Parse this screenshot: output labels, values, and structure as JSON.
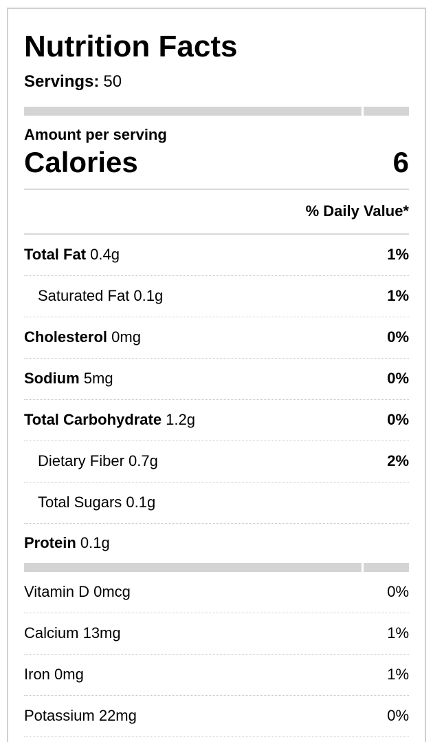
{
  "label": {
    "title": "Nutrition Facts",
    "servings_label": "Servings:",
    "servings_value": "50",
    "amount_per_serving": "Amount per serving",
    "calories_label": "Calories",
    "calories_value": "6",
    "daily_value_header": "% Daily Value*"
  },
  "nutrients": [
    {
      "name": "Total Fat",
      "amount": "0.4g",
      "dv": "1%",
      "bold_name": true,
      "indent": false
    },
    {
      "name": "Saturated Fat",
      "amount": "0.1g",
      "dv": "1%",
      "bold_name": false,
      "indent": true
    },
    {
      "name": "Cholesterol",
      "amount": "0mg",
      "dv": "0%",
      "bold_name": true,
      "indent": false
    },
    {
      "name": "Sodium",
      "amount": "5mg",
      "dv": "0%",
      "bold_name": true,
      "indent": false
    },
    {
      "name": "Total Carbohydrate",
      "amount": "1.2g",
      "dv": "0%",
      "bold_name": true,
      "indent": false
    },
    {
      "name": "Dietary Fiber",
      "amount": "0.7g",
      "dv": "2%",
      "bold_name": false,
      "indent": true
    },
    {
      "name": "Total Sugars",
      "amount": "0.1g",
      "dv": "",
      "bold_name": false,
      "indent": true
    },
    {
      "name": "Protein",
      "amount": "0.1g",
      "dv": "",
      "bold_name": true,
      "indent": false
    }
  ],
  "vitamins": [
    {
      "name": "Vitamin D",
      "amount": "0mcg",
      "dv": "0%"
    },
    {
      "name": "Calcium",
      "amount": "13mg",
      "dv": "1%"
    },
    {
      "name": "Iron",
      "amount": "0mg",
      "dv": "1%"
    },
    {
      "name": "Potassium",
      "amount": "22mg",
      "dv": "0%"
    }
  ],
  "colors": {
    "text": "#000000",
    "thick_bar": "#d4d4d4",
    "solid_divider": "#d8d8d8",
    "dotted_divider": "#c8c8c8",
    "outer_border": "#d0d0d0",
    "background": "#ffffff"
  }
}
